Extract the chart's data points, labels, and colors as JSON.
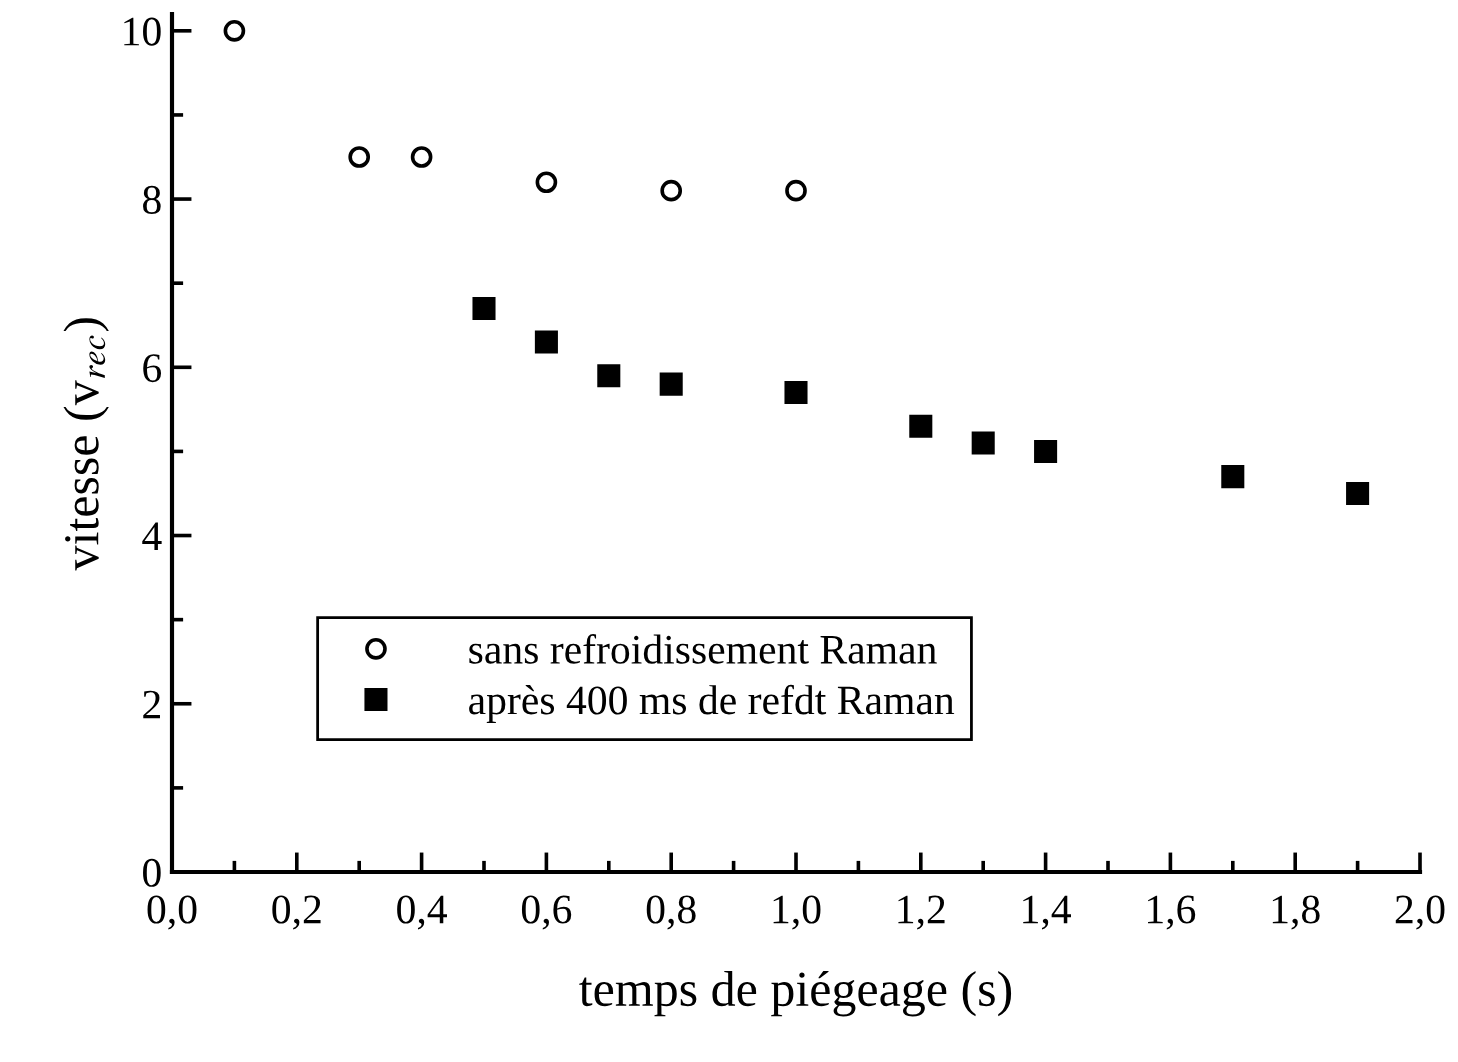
{
  "chart_data": {
    "type": "scatter",
    "xlabel": "temps de piégeage (s)",
    "ylabel": "vitesse (v$_{rec}$)",
    "series": [
      {
        "name": "sans refroidissement Raman",
        "color": "#000000",
        "marker": "circle",
        "x": [
          0.1,
          0.3,
          0.4,
          0.6,
          0.8,
          1.0
        ],
        "values": [
          10.0,
          8.5,
          8.5,
          8.2,
          8.1,
          8.1
        ]
      },
      {
        "name": "après 400 ms de refdt Raman",
        "color": "#000000",
        "marker": "square",
        "x": [
          0.5,
          0.6,
          0.7,
          0.8,
          1.0,
          1.2,
          1.3,
          1.4,
          1.7,
          1.9
        ],
        "values": [
          6.7,
          6.3,
          5.9,
          5.8,
          5.7,
          5.3,
          5.1,
          5.0,
          4.7,
          4.5
        ]
      }
    ],
    "xlim": [
      0.0,
      2.0
    ],
    "ylim": [
      0,
      10.2
    ],
    "xticks": [
      {
        "value": 0.0,
        "label": "0,0"
      },
      {
        "value": 0.2,
        "label": "0,2"
      },
      {
        "value": 0.4,
        "label": "0,4"
      },
      {
        "value": 0.6,
        "label": "0,6"
      },
      {
        "value": 0.8,
        "label": "0,8"
      },
      {
        "value": 1.0,
        "label": "1,0"
      },
      {
        "value": 1.2,
        "label": "1,2"
      },
      {
        "value": 1.4,
        "label": "1,4"
      },
      {
        "value": 1.6,
        "label": "1,6"
      },
      {
        "value": 1.8,
        "label": "1,8"
      },
      {
        "value": 2.0,
        "label": "2,0"
      }
    ],
    "yticks": [
      0,
      2,
      4,
      6,
      8,
      10
    ],
    "grid": false,
    "legend": "lower left"
  }
}
